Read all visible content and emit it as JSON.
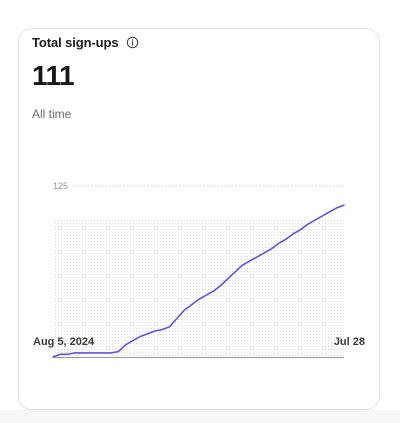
{
  "card": {
    "title": "Total sign-ups",
    "info_icon": "info-icon",
    "value": "111",
    "subtitle": "All time"
  },
  "colors": {
    "line": "#6a4cf0",
    "grid": "#c9c9cf",
    "baseline": "#9a9aa2",
    "dots": "#d9d9de"
  },
  "chart_data": {
    "type": "line",
    "title": "",
    "xlabel": "",
    "ylabel": "",
    "ylim": [
      0,
      125
    ],
    "y_ticks": [
      125
    ],
    "x_tick_labels": [
      "Aug 5, 2024",
      "Jul 28"
    ],
    "series": [
      {
        "values": [
          0,
          2,
          2,
          3,
          3,
          3,
          3,
          3,
          3,
          4,
          9,
          12,
          15,
          17,
          19,
          20,
          22,
          28,
          34,
          38,
          42,
          45,
          48,
          52,
          57,
          62,
          67,
          70,
          73,
          76,
          79,
          83,
          86,
          90,
          93,
          97,
          100,
          103,
          106,
          109,
          111
        ]
      }
    ]
  }
}
